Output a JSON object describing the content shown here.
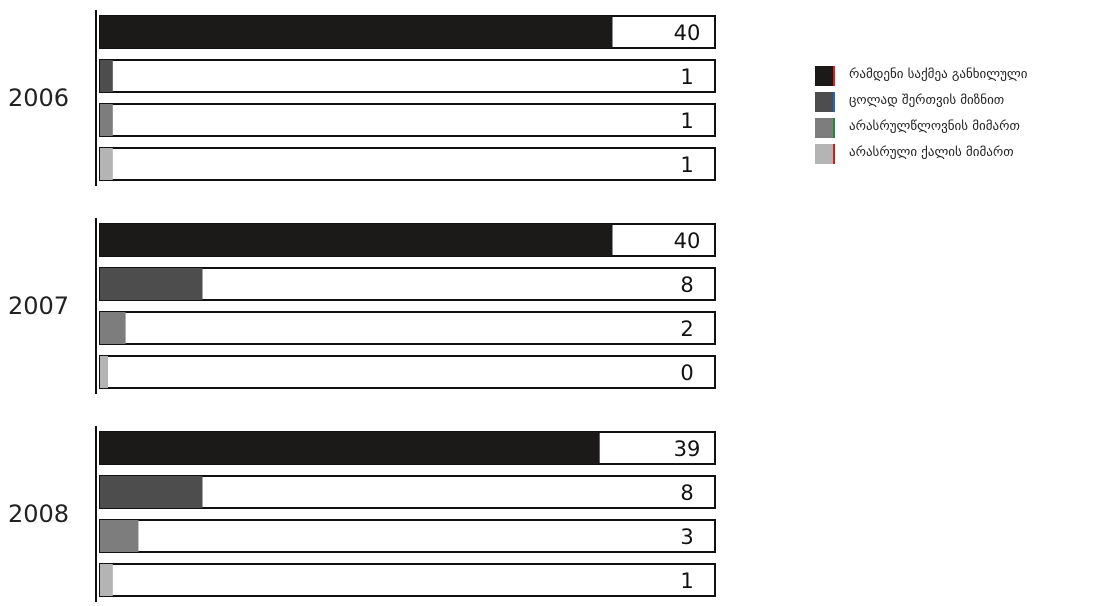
{
  "chart_data": {
    "type": "bar",
    "orientation": "horizontal",
    "groups": [
      {
        "label": "2006",
        "values": [
          40,
          1,
          1,
          1
        ]
      },
      {
        "label": "2007",
        "values": [
          40,
          8,
          2,
          0
        ]
      },
      {
        "label": "2008",
        "values": [
          39,
          8,
          3,
          1
        ]
      }
    ],
    "series": [
      {
        "name": "რამდენი საქმეა განხილული",
        "color": "#1c1919",
        "edge_color": "#d81e1e"
      },
      {
        "name": "ცოლად შერთვის მიზნით",
        "color": "#4d4d4d",
        "edge_color": "#1e63c8"
      },
      {
        "name": "არასრულწლოვნის მიმართ",
        "color": "#7d7d7d",
        "edge_color": "#1e8c3c"
      },
      {
        "name": "არასრული ქალის მიმართ",
        "color": "#b4b4b4",
        "edge_color": "#c81e1e"
      }
    ],
    "xlim": [
      0,
      48
    ],
    "grid": false,
    "legend_position": "top-right",
    "title": "",
    "xlabel": "",
    "ylabel": ""
  }
}
